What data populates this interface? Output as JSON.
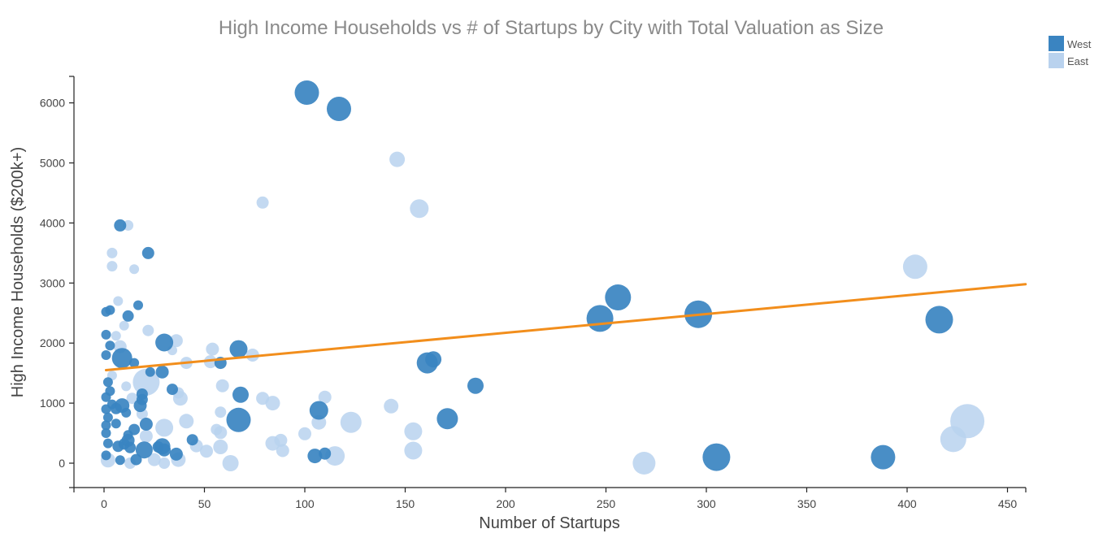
{
  "chart_data": {
    "type": "scatter",
    "title": "High Income  Households vs # of Startups by City with Total Valuation as Size",
    "xlabel": "Number of Startups",
    "ylabel": "High Income Households ($200k+)",
    "xlim": [
      -15,
      460
    ],
    "ylim": [
      -400,
      6400
    ],
    "xticks": [
      0,
      50,
      100,
      150,
      200,
      250,
      300,
      350,
      400,
      450
    ],
    "yticks": [
      0,
      1000,
      2000,
      3000,
      4000,
      5000,
      6000
    ],
    "legend_position": "top-right",
    "size_encoding": "Total Valuation",
    "series": [
      {
        "name": "West",
        "color": "#3a84c1",
        "points": [
          {
            "x": 101,
            "y": 6170,
            "size": 3
          },
          {
            "x": 117,
            "y": 5900,
            "size": 3
          },
          {
            "x": 8,
            "y": 3960,
            "size": 1.5
          },
          {
            "x": 22,
            "y": 3500,
            "size": 1.5
          },
          {
            "x": 17,
            "y": 2630,
            "size": 1.2
          },
          {
            "x": 1,
            "y": 2520,
            "size": 1.2
          },
          {
            "x": 3,
            "y": 2550,
            "size": 1.2
          },
          {
            "x": 12,
            "y": 2450,
            "size": 1.4
          },
          {
            "x": 1,
            "y": 2140,
            "size": 1.2
          },
          {
            "x": 3,
            "y": 1960,
            "size": 1.2
          },
          {
            "x": 30,
            "y": 2010,
            "size": 2.2
          },
          {
            "x": 67,
            "y": 1900,
            "size": 2.2
          },
          {
            "x": 1,
            "y": 1800,
            "size": 1.2
          },
          {
            "x": 9,
            "y": 1750,
            "size": 2.5
          },
          {
            "x": 15,
            "y": 1670,
            "size": 1.2
          },
          {
            "x": 58,
            "y": 1670,
            "size": 1.5
          },
          {
            "x": 23,
            "y": 1520,
            "size": 1.2
          },
          {
            "x": 29,
            "y": 1520,
            "size": 1.6
          },
          {
            "x": 2,
            "y": 1350,
            "size": 1.2
          },
          {
            "x": 3,
            "y": 1200,
            "size": 1.2
          },
          {
            "x": 34,
            "y": 1230,
            "size": 1.4
          },
          {
            "x": 19,
            "y": 1150,
            "size": 1.4
          },
          {
            "x": 68,
            "y": 1140,
            "size": 2
          },
          {
            "x": 1,
            "y": 1100,
            "size": 1.2
          },
          {
            "x": 19,
            "y": 1060,
            "size": 1.4
          },
          {
            "x": 4,
            "y": 980,
            "size": 1.2
          },
          {
            "x": 9,
            "y": 960,
            "size": 1.8
          },
          {
            "x": 18,
            "y": 960,
            "size": 1.6
          },
          {
            "x": 1,
            "y": 900,
            "size": 1.2
          },
          {
            "x": 6,
            "y": 910,
            "size": 1.4
          },
          {
            "x": 11,
            "y": 840,
            "size": 1.2
          },
          {
            "x": 107,
            "y": 880,
            "size": 2.3
          },
          {
            "x": 2,
            "y": 760,
            "size": 1.2
          },
          {
            "x": 67,
            "y": 720,
            "size": 3
          },
          {
            "x": 171,
            "y": 740,
            "size": 2.6
          },
          {
            "x": 6,
            "y": 660,
            "size": 1.2
          },
          {
            "x": 21,
            "y": 650,
            "size": 1.6
          },
          {
            "x": 1,
            "y": 630,
            "size": 1.2
          },
          {
            "x": 15,
            "y": 560,
            "size": 1.4
          },
          {
            "x": 1,
            "y": 500,
            "size": 1.2
          },
          {
            "x": 12,
            "y": 470,
            "size": 1.2
          },
          {
            "x": 12,
            "y": 380,
            "size": 1.6
          },
          {
            "x": 44,
            "y": 390,
            "size": 1.4
          },
          {
            "x": 2,
            "y": 330,
            "size": 1.2
          },
          {
            "x": 10,
            "y": 320,
            "size": 1.4
          },
          {
            "x": 7,
            "y": 280,
            "size": 1.4
          },
          {
            "x": 13,
            "y": 260,
            "size": 1.4
          },
          {
            "x": 27,
            "y": 270,
            "size": 1.4
          },
          {
            "x": 29,
            "y": 280,
            "size": 2
          },
          {
            "x": 20,
            "y": 220,
            "size": 2.1
          },
          {
            "x": 30,
            "y": 220,
            "size": 1.6
          },
          {
            "x": 1,
            "y": 130,
            "size": 1.2
          },
          {
            "x": 16,
            "y": 60,
            "size": 1.4
          },
          {
            "x": 36,
            "y": 150,
            "size": 1.6
          },
          {
            "x": 8,
            "y": 50,
            "size": 1.2
          },
          {
            "x": 105,
            "y": 120,
            "size": 1.8
          },
          {
            "x": 110,
            "y": 160,
            "size": 1.5
          },
          {
            "x": 161,
            "y": 1670,
            "size": 2.6
          },
          {
            "x": 164,
            "y": 1730,
            "size": 2
          },
          {
            "x": 185,
            "y": 1290,
            "size": 2
          },
          {
            "x": 247,
            "y": 2410,
            "size": 3.3
          },
          {
            "x": 256,
            "y": 2760,
            "size": 3.2
          },
          {
            "x": 296,
            "y": 2480,
            "size": 3.4
          },
          {
            "x": 416,
            "y": 2390,
            "size": 3.4
          },
          {
            "x": 305,
            "y": 100,
            "size": 3.4
          },
          {
            "x": 388,
            "y": 100,
            "size": 3
          }
        ]
      },
      {
        "name": "East",
        "color": "#b9d2ee",
        "points": [
          {
            "x": 146,
            "y": 5060,
            "size": 1.9
          },
          {
            "x": 79,
            "y": 4340,
            "size": 1.5
          },
          {
            "x": 157,
            "y": 4240,
            "size": 2.3
          },
          {
            "x": 12,
            "y": 3960,
            "size": 1.3
          },
          {
            "x": 4,
            "y": 3500,
            "size": 1.3
          },
          {
            "x": 4,
            "y": 3280,
            "size": 1.3
          },
          {
            "x": 15,
            "y": 3230,
            "size": 1.2
          },
          {
            "x": 404,
            "y": 3270,
            "size": 3
          },
          {
            "x": 7,
            "y": 2700,
            "size": 1.2
          },
          {
            "x": 10,
            "y": 2290,
            "size": 1.2
          },
          {
            "x": 22,
            "y": 2210,
            "size": 1.4
          },
          {
            "x": 6,
            "y": 2120,
            "size": 1.2
          },
          {
            "x": 36,
            "y": 2040,
            "size": 1.6
          },
          {
            "x": 8,
            "y": 1940,
            "size": 1.6
          },
          {
            "x": 34,
            "y": 1880,
            "size": 1.2
          },
          {
            "x": 54,
            "y": 1900,
            "size": 1.6
          },
          {
            "x": 74,
            "y": 1800,
            "size": 1.6
          },
          {
            "x": 41,
            "y": 1670,
            "size": 1.5
          },
          {
            "x": 53,
            "y": 1690,
            "size": 1.6
          },
          {
            "x": 4,
            "y": 1460,
            "size": 1.2
          },
          {
            "x": 21,
            "y": 1350,
            "size": 3.3
          },
          {
            "x": 59,
            "y": 1290,
            "size": 1.6
          },
          {
            "x": 11,
            "y": 1280,
            "size": 1.2
          },
          {
            "x": 37,
            "y": 1170,
            "size": 1.4
          },
          {
            "x": 14,
            "y": 1080,
            "size": 1.4
          },
          {
            "x": 38,
            "y": 1080,
            "size": 1.8
          },
          {
            "x": 79,
            "y": 1080,
            "size": 1.6
          },
          {
            "x": 84,
            "y": 1000,
            "size": 1.8
          },
          {
            "x": 110,
            "y": 1100,
            "size": 1.6
          },
          {
            "x": 143,
            "y": 950,
            "size": 1.8
          },
          {
            "x": 58,
            "y": 850,
            "size": 1.4
          },
          {
            "x": 19,
            "y": 820,
            "size": 1.4
          },
          {
            "x": 41,
            "y": 700,
            "size": 1.8
          },
          {
            "x": 123,
            "y": 680,
            "size": 2.6
          },
          {
            "x": 107,
            "y": 680,
            "size": 1.8
          },
          {
            "x": 30,
            "y": 590,
            "size": 2.2
          },
          {
            "x": 56,
            "y": 560,
            "size": 1.4
          },
          {
            "x": 58,
            "y": 510,
            "size": 1.6
          },
          {
            "x": 100,
            "y": 490,
            "size": 1.6
          },
          {
            "x": 154,
            "y": 530,
            "size": 2.2
          },
          {
            "x": 21,
            "y": 450,
            "size": 1.6
          },
          {
            "x": 88,
            "y": 380,
            "size": 1.6
          },
          {
            "x": 84,
            "y": 330,
            "size": 1.8
          },
          {
            "x": 46,
            "y": 290,
            "size": 1.6
          },
          {
            "x": 58,
            "y": 270,
            "size": 1.8
          },
          {
            "x": 89,
            "y": 210,
            "size": 1.6
          },
          {
            "x": 51,
            "y": 200,
            "size": 1.6
          },
          {
            "x": 154,
            "y": 210,
            "size": 2.2
          },
          {
            "x": 115,
            "y": 120,
            "size": 2.4
          },
          {
            "x": 2,
            "y": 50,
            "size": 1.8
          },
          {
            "x": 25,
            "y": 60,
            "size": 1.6
          },
          {
            "x": 37,
            "y": 60,
            "size": 1.8
          },
          {
            "x": 63,
            "y": 0,
            "size": 2
          },
          {
            "x": 13,
            "y": 0,
            "size": 1.4
          },
          {
            "x": 30,
            "y": 0,
            "size": 1.4
          },
          {
            "x": 269,
            "y": 0,
            "size": 2.8
          },
          {
            "x": 423,
            "y": 400,
            "size": 3.2
          },
          {
            "x": 430,
            "y": 700,
            "size": 4.2
          }
        ]
      }
    ],
    "trendline": {
      "color": "#f28e1c",
      "x": [
        1,
        459
      ],
      "y": [
        1550,
        2980
      ]
    }
  }
}
